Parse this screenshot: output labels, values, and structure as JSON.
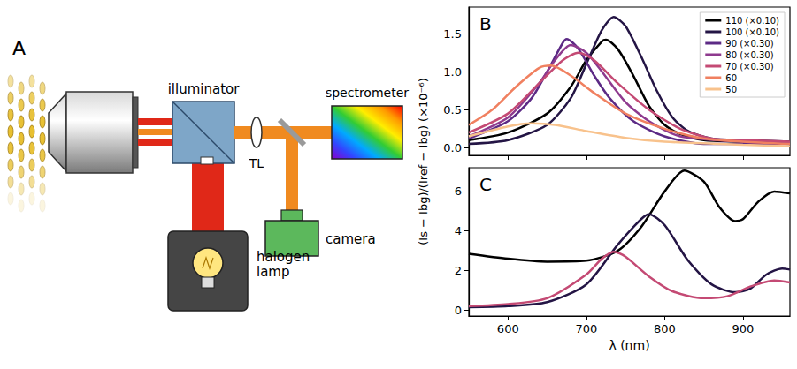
{
  "diagram": {
    "panel": "A",
    "nodes": [
      {
        "label": "illuminator"
      },
      {
        "label": "spectrometer"
      },
      {
        "label": "TL"
      },
      {
        "label": "camera"
      },
      {
        "label": "halogen lamp"
      }
    ]
  },
  "ylabel": "(Is − Ibg)/(Iref − Ibg) (×10⁻⁶)",
  "chart_data": [
    {
      "panel": "B",
      "type": "line",
      "xlim": [
        550,
        960
      ],
      "xticks": [
        600,
        700,
        800,
        900
      ],
      "ylim": [
        -0.1,
        1.85
      ],
      "yticks": [
        {
          "value": 0,
          "label": "0.0"
        },
        0.5,
        {
          "value": 1,
          "label": "1.0"
        },
        1.5
      ],
      "tick_labels": "y",
      "legend": "upper right",
      "series": [
        {
          "name": "110 (×0.10)",
          "color": "#000000",
          "x": [
            550,
            600,
            650,
            680,
            700,
            720,
            725,
            740,
            760,
            780,
            800,
            820,
            850,
            900,
            960
          ],
          "values": [
            0.1,
            0.2,
            0.45,
            0.8,
            1.15,
            1.4,
            1.42,
            1.3,
            0.95,
            0.55,
            0.3,
            0.18,
            0.1,
            0.08,
            0.05
          ]
        },
        {
          "name": "100 (×0.10)",
          "color": "#241545",
          "x": [
            550,
            600,
            650,
            680,
            700,
            720,
            735,
            750,
            770,
            790,
            810,
            830,
            860,
            900,
            960
          ],
          "values": [
            0.05,
            0.1,
            0.3,
            0.65,
            1.1,
            1.55,
            1.72,
            1.6,
            1.2,
            0.75,
            0.4,
            0.22,
            0.12,
            0.1,
            0.08
          ]
        },
        {
          "name": "90 (×0.30)",
          "color": "#5c2a85",
          "x": [
            550,
            600,
            630,
            650,
            670,
            675,
            690,
            710,
            730,
            760,
            800,
            850,
            900,
            960
          ],
          "values": [
            0.12,
            0.35,
            0.65,
            1.0,
            1.38,
            1.43,
            1.3,
            0.95,
            0.65,
            0.35,
            0.15,
            0.05,
            0.05,
            0.05
          ]
        },
        {
          "name": "80 (×0.30)",
          "color": "#8e3a8e",
          "x": [
            550,
            600,
            640,
            660,
            680,
            700,
            720,
            750,
            780,
            820,
            900,
            960
          ],
          "values": [
            0.15,
            0.4,
            0.85,
            1.15,
            1.35,
            1.25,
            1.0,
            0.6,
            0.35,
            0.15,
            0.08,
            0.06
          ]
        },
        {
          "name": "70 (×0.30)",
          "color": "#c44a74",
          "x": [
            550,
            600,
            640,
            670,
            690,
            710,
            740,
            780,
            820,
            860,
            900,
            960
          ],
          "values": [
            0.2,
            0.45,
            0.85,
            1.15,
            1.25,
            1.15,
            0.85,
            0.5,
            0.25,
            0.12,
            0.1,
            0.08
          ]
        },
        {
          "name": "60",
          "color": "#f08060",
          "x": [
            550,
            580,
            610,
            640,
            655,
            680,
            710,
            750,
            800,
            850,
            900,
            960
          ],
          "values": [
            0.3,
            0.5,
            0.8,
            1.05,
            1.08,
            0.95,
            0.72,
            0.45,
            0.25,
            0.12,
            0.08,
            0.05
          ]
        },
        {
          "name": "50",
          "color": "#f8c28c",
          "x": [
            550,
            600,
            630,
            660,
            700,
            750,
            800,
            900,
            960
          ],
          "values": [
            0.15,
            0.28,
            0.32,
            0.3,
            0.22,
            0.13,
            0.08,
            0.04,
            0.02
          ]
        }
      ]
    },
    {
      "panel": "C",
      "type": "line",
      "xlabel": "λ (nm)",
      "xlim": [
        550,
        960
      ],
      "xticks": [
        600,
        700,
        800,
        900
      ],
      "ylim": [
        -0.3,
        7.2
      ],
      "yticks": [
        0,
        2,
        4,
        6
      ],
      "series": [
        {
          "color": "#000000",
          "x": [
            550,
            600,
            650,
            700,
            740,
            770,
            800,
            825,
            850,
            870,
            890,
            900,
            920,
            940,
            960
          ],
          "values": [
            2.85,
            2.6,
            2.45,
            2.5,
            3.0,
            4.2,
            6.0,
            7.05,
            6.5,
            5.2,
            4.5,
            4.6,
            5.5,
            6.0,
            5.9
          ]
        },
        {
          "color": "#241545",
          "x": [
            550,
            600,
            650,
            700,
            740,
            770,
            780,
            800,
            830,
            860,
            890,
            910,
            930,
            950,
            960
          ],
          "values": [
            0.15,
            0.2,
            0.4,
            1.3,
            3.3,
            4.6,
            4.85,
            4.3,
            2.5,
            1.3,
            0.9,
            1.1,
            1.8,
            2.1,
            2.05
          ]
        },
        {
          "color": "#c44a74",
          "x": [
            550,
            600,
            650,
            700,
            720,
            735,
            750,
            780,
            810,
            850,
            880,
            910,
            940,
            960
          ],
          "values": [
            0.2,
            0.3,
            0.6,
            1.8,
            2.6,
            2.95,
            2.7,
            1.7,
            0.95,
            0.6,
            0.7,
            1.2,
            1.5,
            1.4
          ]
        }
      ]
    }
  ]
}
